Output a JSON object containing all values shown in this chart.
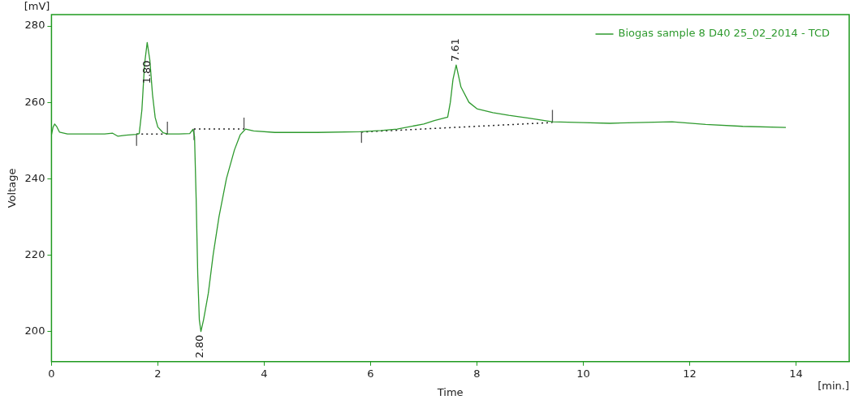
{
  "chart_data": {
    "type": "line",
    "xlabel": "Time",
    "ylabel": "Voltage",
    "xlim": [
      0,
      15
    ],
    "xticks": [
      0,
      2,
      4,
      6,
      8,
      10,
      12,
      14
    ],
    "ylim": [
      192,
      283
    ],
    "yticks": [
      200,
      220,
      240,
      260,
      280
    ],
    "grid": false,
    "legend": "top right",
    "marker": "none",
    "annotations": [
      "[mV]",
      "[min.]",
      {
        "text": "1.80",
        "x": 1.8,
        "y": 264
      },
      {
        "text": "2.80",
        "x": 2.8,
        "y": 199.9
      },
      {
        "text": "7.61",
        "x": 7.61,
        "y": 269.8
      }
    ],
    "series": [
      {
        "name": "Biogas sample 8 D40 25_02_2014 - TCD",
        "color": "#2e9a2e",
        "line_style": "solid",
        "x": [
          0,
          0.03,
          0.06,
          0.1,
          0.15,
          0.3,
          0.6,
          1.0,
          1.15,
          1.25,
          1.4,
          1.6,
          1.65,
          1.7,
          1.75,
          1.8,
          1.85,
          1.9,
          1.95,
          2.0,
          2.1,
          2.18,
          2.4,
          2.6,
          2.66,
          2.69,
          2.72,
          2.75,
          2.78,
          2.81,
          2.86,
          2.95,
          3.04,
          3.15,
          3.29,
          3.44,
          3.55,
          3.65,
          3.8,
          4.2,
          5.0,
          5.8,
          6.2,
          6.5,
          7.0,
          7.2,
          7.45,
          7.5,
          7.55,
          7.61,
          7.7,
          7.85,
          8.0,
          8.3,
          8.6,
          9.0,
          9.42,
          10.0,
          10.5,
          11.0,
          11.67,
          12.3,
          13.0,
          13.81
        ],
        "values": [
          251.5,
          253.5,
          254.3,
          253.6,
          252.2,
          251.7,
          251.7,
          251.7,
          251.9,
          251.1,
          251.4,
          251.6,
          251.8,
          258,
          270,
          275.7,
          271,
          262,
          256,
          253.5,
          252,
          251.7,
          251.7,
          251.8,
          252.9,
          251,
          235,
          215,
          203,
          199.9,
          203,
          210,
          220,
          230,
          240,
          247.5,
          251.5,
          253,
          252.5,
          252.1,
          252.1,
          252.3,
          252.6,
          253,
          254.3,
          255.2,
          256.1,
          260,
          266,
          269.8,
          264,
          260,
          258.3,
          257.3,
          256.6,
          255.8,
          254.9,
          254.7,
          254.5,
          254.7,
          254.9,
          254.2,
          253.7,
          253.4
        ]
      },
      {
        "color": "#222222",
        "line_style": "dotted",
        "x": [
          1.6,
          2.18,
          null,
          2.68,
          3.62,
          null,
          5.83,
          9.42
        ],
        "values": [
          251.7,
          251.7,
          null,
          253,
          253,
          null,
          252.2,
          254.7
        ]
      },
      {
        "color": "#555555",
        "line_style": "solid",
        "x": [
          1.6,
          1.6,
          null,
          2.18,
          2.18,
          null,
          2.68,
          2.68,
          null,
          3.62,
          3.62,
          null,
          5.83,
          5.83,
          null,
          9.42,
          9.42
        ],
        "values": [
          251.7,
          248.7,
          null,
          251.7,
          254.9,
          null,
          253,
          250.2,
          null,
          253,
          256,
          null,
          252.2,
          249.5,
          null,
          254.7,
          258
        ]
      }
    ]
  }
}
